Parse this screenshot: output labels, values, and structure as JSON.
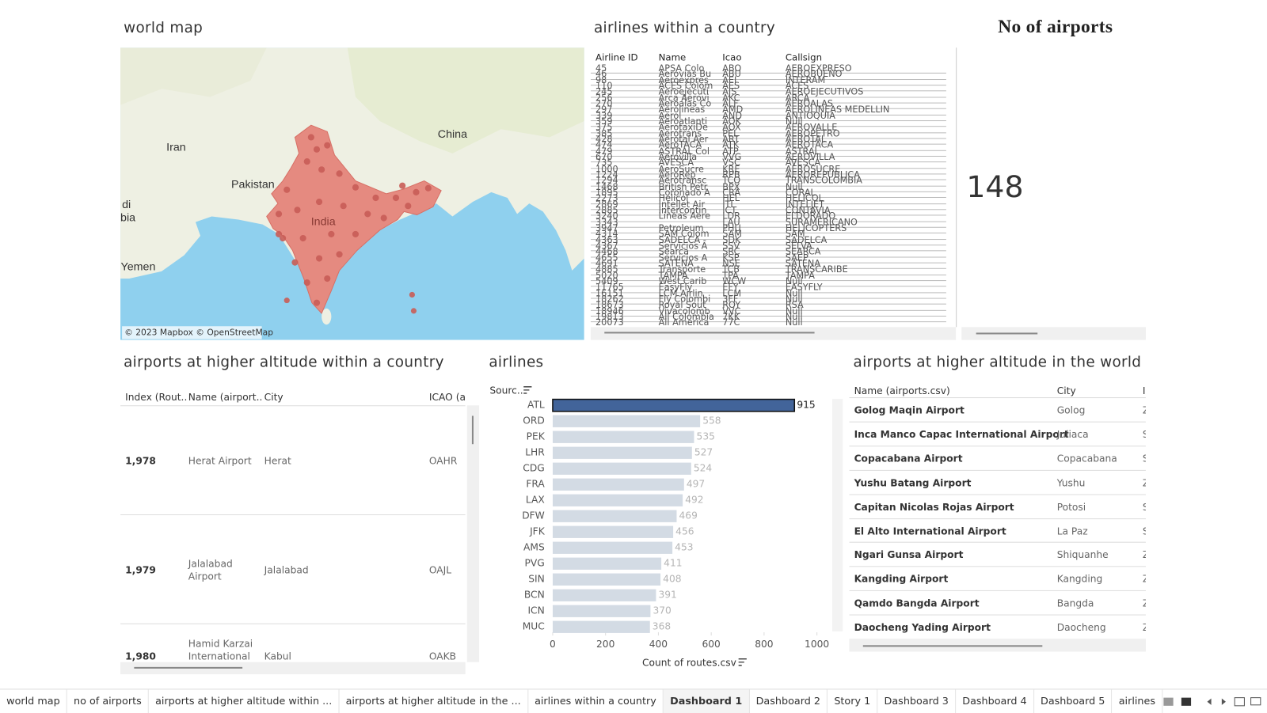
{
  "world_map": {
    "title": "world map",
    "labels": [
      "Iran",
      "China",
      "Pakistan",
      "India",
      "Yemen",
      "di",
      "bia"
    ],
    "attribution": "© 2023 Mapbox © OpenStreetMap"
  },
  "airlines_table": {
    "title": "airlines within a country",
    "columns": [
      "Airline ID",
      "Name",
      "Icao",
      "Callsign"
    ],
    "rows": [
      [
        45,
        "APSA Colo",
        "ABO",
        "AEROEXPRESO"
      ],
      [
        46,
        "Aerovias Bu",
        "ABU",
        "AEROBUENO"
      ],
      [
        98,
        "Aeroexpres",
        "AEI",
        "INTERAM"
      ],
      [
        110,
        "ACES Colom",
        "AES",
        "ACES"
      ],
      [
        245,
        "Aeroejecuti",
        "AJS",
        "AEROEJECUTIVOS"
      ],
      [
        256,
        "Arca Aerovi",
        "AKC",
        "ARCA"
      ],
      [
        270,
        "Aeroalas Co",
        "ALF",
        "AEROALAS"
      ],
      [
        297,
        "Aerolineas",
        "AMD",
        "AEROLINEAS MEDELLIN"
      ],
      [
        339,
        "Aerol",
        "AND",
        "ANTIOQUIA"
      ],
      [
        359,
        "Aeroatlanti",
        "AOK",
        "Null"
      ],
      [
        375,
        "AerotaxiDe",
        "AOX",
        "AEROVALLE"
      ],
      [
        385,
        "Aerotrans",
        "PEL",
        "AEROPETRO"
      ],
      [
        428,
        "Aerotal Aer",
        "ART",
        "AEROTAL"
      ],
      [
        474,
        "AeroTACA",
        "ATK",
        "AEROTACA"
      ],
      [
        479,
        "ASTRAL Col",
        "ATP",
        "ASTRAL"
      ],
      [
        670,
        "Aerovilla",
        "VVG",
        "AEROVILLA"
      ],
      [
        735,
        "AVESCA",
        "VSC",
        "AVESCA"
      ],
      [
        1000,
        "AeroSucre",
        "KRE",
        "AEROSUCRE"
      ],
      [
        1224,
        "AeroRep",
        "RPB",
        "AEROREPUBLICA"
      ],
      [
        1294,
        "Aerotransc",
        "TCO",
        "TRANSCOLOMBIA"
      ],
      [
        1468,
        "British Petr",
        "BPX",
        "Null"
      ],
      [
        1895,
        "Coronado A",
        "CRA",
        "CORAL"
      ],
      [
        2273,
        "Helicol",
        "HEL",
        "HELICOL"
      ],
      [
        2869,
        "IntelJet Air",
        "ITL",
        "INTELJET"
      ],
      [
        2885,
        "Intercontin",
        "ICT",
        "CONTAVIA"
      ],
      [
        3240,
        "Lineas Aere",
        "LDR",
        "ELDORADO"
      ],
      [
        3343,
        "",
        "LAU",
        "SURAMERICANO"
      ],
      [
        3947,
        "Petroleum",
        "PHU",
        "HELICOPTERS"
      ],
      [
        4314,
        "SAM Colom",
        "SAM",
        "SAM"
      ],
      [
        4363,
        "SADELCA -",
        "SDK",
        "SADELCA"
      ],
      [
        4367,
        "Servicios A",
        "SSV",
        "SELVA"
      ],
      [
        4468,
        "Searca",
        "SRC",
        "SEARCA"
      ],
      [
        4655,
        "Servicios A",
        "KSP",
        "SAEP"
      ],
      [
        4691,
        "SATENA",
        "NSE",
        "SATENA"
      ],
      [
        4885,
        "Transporte",
        "TCB",
        "TRANSCARIBE"
      ],
      [
        5020,
        "TAMPA",
        "TPA",
        "TAMPA"
      ],
      [
        5409,
        "West Carib",
        "WCW",
        "Null"
      ],
      [
        11765,
        "EasyFly",
        "EFY",
        "EASYFLY"
      ],
      [
        16151,
        "LCM Airlin",
        "LCM",
        "Null"
      ],
      [
        18262,
        "Fly Colombi",
        "3FF",
        "Null"
      ],
      [
        18673,
        "Royal Sout",
        "ROY",
        "RSA"
      ],
      [
        18946,
        "Vivacolomb",
        "VVC",
        "Null"
      ],
      [
        19813,
        "All Colombia",
        "7KK",
        "Null"
      ],
      [
        20073,
        "All America",
        "77C",
        "Null"
      ]
    ]
  },
  "airport_count": {
    "title": "No of airports",
    "value": 148
  },
  "altitude_country": {
    "title": "airports at higher altitude within a country",
    "columns": [
      "Index (Rout..",
      "Name (airport..",
      "City",
      "ICAO (ai"
    ],
    "rows": [
      [
        "1,978",
        "Herat Airport",
        "Herat",
        "OAHR"
      ],
      [
        "1,979",
        "Jalalabad Airport",
        "Jalalabad",
        "OAJL"
      ],
      [
        "1,980",
        "Hamid Karzai International Airport",
        "Kabul",
        "OAKB"
      ]
    ]
  },
  "chart_data": {
    "type": "bar",
    "title": "airlines",
    "category_label": "Sourc..",
    "x_label": "Count of routes.csv",
    "categories": [
      "ATL",
      "ORD",
      "PEK",
      "LHR",
      "CDG",
      "FRA",
      "LAX",
      "DFW",
      "JFK",
      "AMS",
      "PVG",
      "SIN",
      "BCN",
      "ICN",
      "MUC"
    ],
    "values": [
      915,
      558,
      535,
      527,
      524,
      497,
      492,
      469,
      456,
      453,
      411,
      408,
      391,
      370,
      368
    ],
    "color": "#d3dbe4",
    "highlight_color": "#42649a",
    "highlighted": "ATL",
    "xlim": [
      0,
      1000
    ],
    "xticks": [
      0,
      200,
      400,
      600,
      800,
      1000
    ]
  },
  "altitude_world": {
    "title": "airports at higher altitude in the world",
    "columns": [
      "Name (airports.csv)",
      "City",
      "I"
    ],
    "rows": [
      [
        "Golog Maqin Airport",
        "Golog",
        "Z"
      ],
      [
        "Inca Manco Capac International Airport",
        "Juliaca",
        "S"
      ],
      [
        "Copacabana Airport",
        "Copacabana",
        "S"
      ],
      [
        "Yushu Batang Airport",
        "Yushu",
        "Z"
      ],
      [
        "Capitan Nicolas Rojas Airport",
        "Potosi",
        "S"
      ],
      [
        "El Alto International Airport",
        "La Paz",
        "S"
      ],
      [
        "Ngari Gunsa Airport",
        "Shiquanhe",
        "Z"
      ],
      [
        "Kangding Airport",
        "Kangding",
        "Z"
      ],
      [
        "Qamdo Bangda Airport",
        "Bangda",
        "Z"
      ],
      [
        "Daocheng Yading Airport",
        "Daocheng",
        "Z"
      ]
    ]
  },
  "tabs": [
    "world map",
    "no of airports",
    "airports at higher altitude within ...",
    "airports at higher altitude in the ...",
    "airlines within a country",
    "Dashboard 1",
    "Dashboard 2",
    "Story 1",
    "Dashboard 3",
    "Dashboard 4",
    "Dashboard 5",
    "airlines"
  ],
  "active_tab": 5
}
